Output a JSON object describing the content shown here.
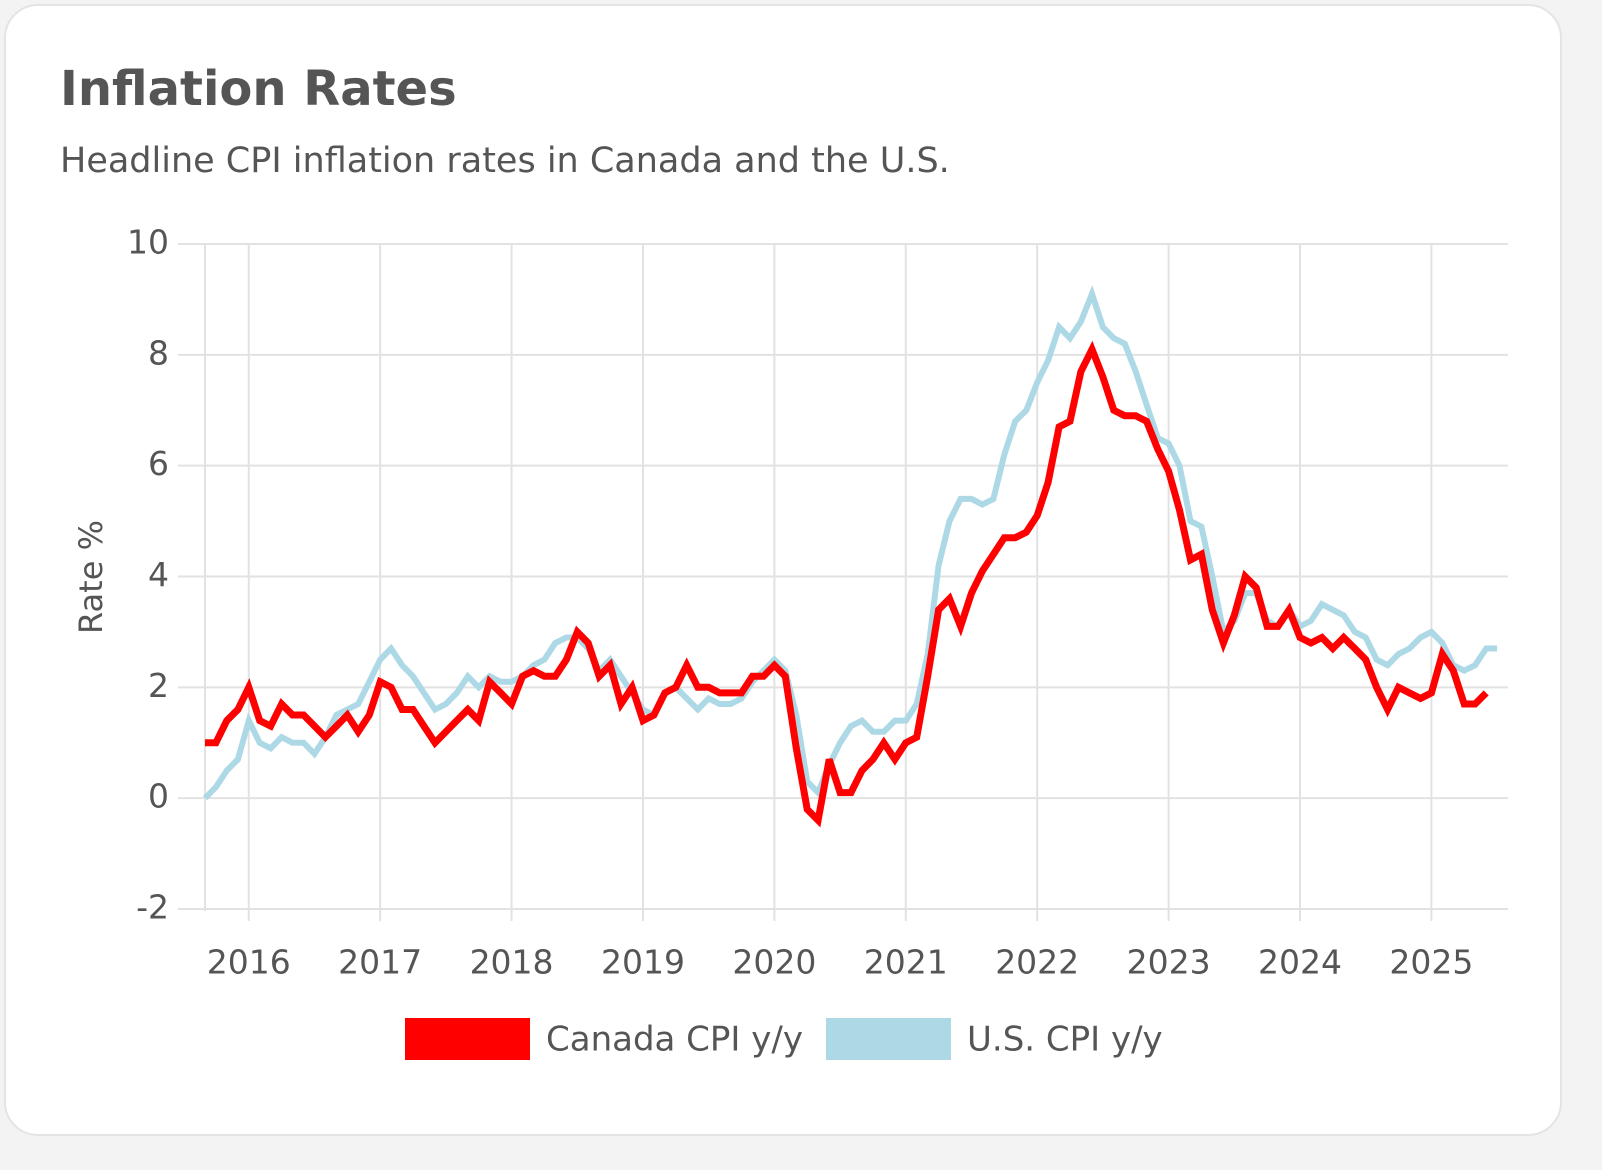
{
  "chart_data": {
    "type": "line",
    "title": "Inflation Rates",
    "subtitle": "Headline CPI inflation rates in Canada and the U.S.",
    "y_label": "Rate %",
    "x": [
      2015.667,
      2015.75,
      2015.833,
      2015.917,
      2016,
      2016.083,
      2016.167,
      2016.25,
      2016.333,
      2016.417,
      2016.5,
      2016.583,
      2016.667,
      2016.75,
      2016.833,
      2016.917,
      2017,
      2017.083,
      2017.167,
      2017.25,
      2017.333,
      2017.417,
      2017.5,
      2017.583,
      2017.667,
      2017.75,
      2017.833,
      2017.917,
      2018,
      2018.083,
      2018.167,
      2018.25,
      2018.333,
      2018.417,
      2018.5,
      2018.583,
      2018.667,
      2018.75,
      2018.833,
      2018.917,
      2019,
      2019.083,
      2019.167,
      2019.25,
      2019.333,
      2019.417,
      2019.5,
      2019.583,
      2019.667,
      2019.75,
      2019.833,
      2019.917,
      2020,
      2020.083,
      2020.167,
      2020.25,
      2020.333,
      2020.417,
      2020.5,
      2020.583,
      2020.667,
      2020.75,
      2020.833,
      2020.917,
      2021,
      2021.083,
      2021.167,
      2021.25,
      2021.333,
      2021.417,
      2021.5,
      2021.583,
      2021.667,
      2021.75,
      2021.833,
      2021.917,
      2022,
      2022.083,
      2022.167,
      2022.25,
      2022.333,
      2022.417,
      2022.5,
      2022.583,
      2022.667,
      2022.75,
      2022.833,
      2022.917,
      2023,
      2023.083,
      2023.167,
      2023.25,
      2023.333,
      2023.417,
      2023.5,
      2023.583,
      2023.667,
      2023.75,
      2023.833,
      2023.917,
      2024,
      2024.083,
      2024.167,
      2024.25,
      2024.333,
      2024.417,
      2024.5,
      2024.583,
      2024.667,
      2024.75,
      2024.833,
      2024.917,
      2025,
      2025.083,
      2025.167,
      2025.25,
      2025.333,
      2025.417,
      2025.5
    ],
    "series": [
      {
        "name": "Canada CPI y/y",
        "color": "#ff0000",
        "values": [
          1.0,
          1.0,
          1.4,
          1.6,
          2.0,
          1.4,
          1.3,
          1.7,
          1.5,
          1.5,
          1.3,
          1.1,
          1.3,
          1.5,
          1.2,
          1.5,
          2.1,
          2.0,
          1.6,
          1.6,
          1.3,
          1.0,
          1.2,
          1.4,
          1.6,
          1.4,
          2.1,
          1.9,
          1.7,
          2.2,
          2.3,
          2.2,
          2.2,
          2.5,
          3.0,
          2.8,
          2.2,
          2.4,
          1.7,
          2.0,
          1.4,
          1.5,
          1.9,
          2.0,
          2.4,
          2.0,
          2.0,
          1.9,
          1.9,
          1.9,
          2.2,
          2.2,
          2.4,
          2.2,
          0.9,
          -0.2,
          -0.4,
          0.7,
          0.1,
          0.1,
          0.5,
          0.7,
          1.0,
          0.7,
          1.0,
          1.1,
          2.2,
          3.4,
          3.6,
          3.1,
          3.7,
          4.1,
          4.4,
          4.7,
          4.7,
          4.8,
          5.1,
          5.7,
          6.7,
          6.8,
          7.7,
          8.1,
          7.6,
          7.0,
          6.9,
          6.9,
          6.8,
          6.3,
          5.9,
          5.2,
          4.3,
          4.4,
          3.4,
          2.8,
          3.3,
          4.0,
          3.8,
          3.1,
          3.1,
          3.4,
          2.9,
          2.8,
          2.9,
          2.7,
          2.9,
          2.7,
          2.5,
          2.0,
          1.6,
          2.0,
          1.9,
          1.8,
          1.9,
          2.6,
          2.3,
          1.7,
          1.7,
          1.9,
          null
        ]
      },
      {
        "name": "U.S. CPI y/y",
        "color": "#add8e6",
        "values": [
          0.0,
          0.2,
          0.5,
          0.7,
          1.4,
          1.0,
          0.9,
          1.1,
          1.0,
          1.0,
          0.8,
          1.1,
          1.5,
          1.6,
          1.7,
          2.1,
          2.5,
          2.7,
          2.4,
          2.2,
          1.9,
          1.6,
          1.7,
          1.9,
          2.2,
          2.0,
          2.2,
          2.1,
          2.1,
          2.2,
          2.4,
          2.5,
          2.8,
          2.9,
          2.9,
          2.7,
          2.3,
          2.5,
          2.2,
          1.9,
          1.6,
          1.5,
          1.9,
          2.0,
          1.8,
          1.6,
          1.8,
          1.7,
          1.7,
          1.8,
          2.1,
          2.3,
          2.5,
          2.3,
          1.5,
          0.3,
          0.1,
          0.6,
          1.0,
          1.3,
          1.4,
          1.2,
          1.2,
          1.4,
          1.4,
          1.7,
          2.6,
          4.2,
          5.0,
          5.4,
          5.4,
          5.3,
          5.4,
          6.2,
          6.8,
          7.0,
          7.5,
          7.9,
          8.5,
          8.3,
          8.6,
          9.1,
          8.5,
          8.3,
          8.2,
          7.7,
          7.1,
          6.5,
          6.4,
          6.0,
          5.0,
          4.9,
          4.0,
          3.0,
          3.2,
          3.7,
          3.7,
          3.2,
          3.1,
          3.4,
          3.1,
          3.2,
          3.5,
          3.4,
          3.3,
          3.0,
          2.9,
          2.5,
          2.4,
          2.6,
          2.7,
          2.9,
          3.0,
          2.8,
          2.4,
          2.3,
          2.4,
          2.7,
          2.7
        ]
      }
    ],
    "xlim": [
      2015.667,
      2025.583
    ],
    "xticks": [
      2016,
      2017,
      2018,
      2019,
      2020,
      2021,
      2022,
      2023,
      2024,
      2025
    ],
    "ylim": [
      -2,
      10
    ],
    "yticks": [
      -2,
      0,
      2,
      4,
      6,
      8,
      10
    ],
    "grid": true
  }
}
